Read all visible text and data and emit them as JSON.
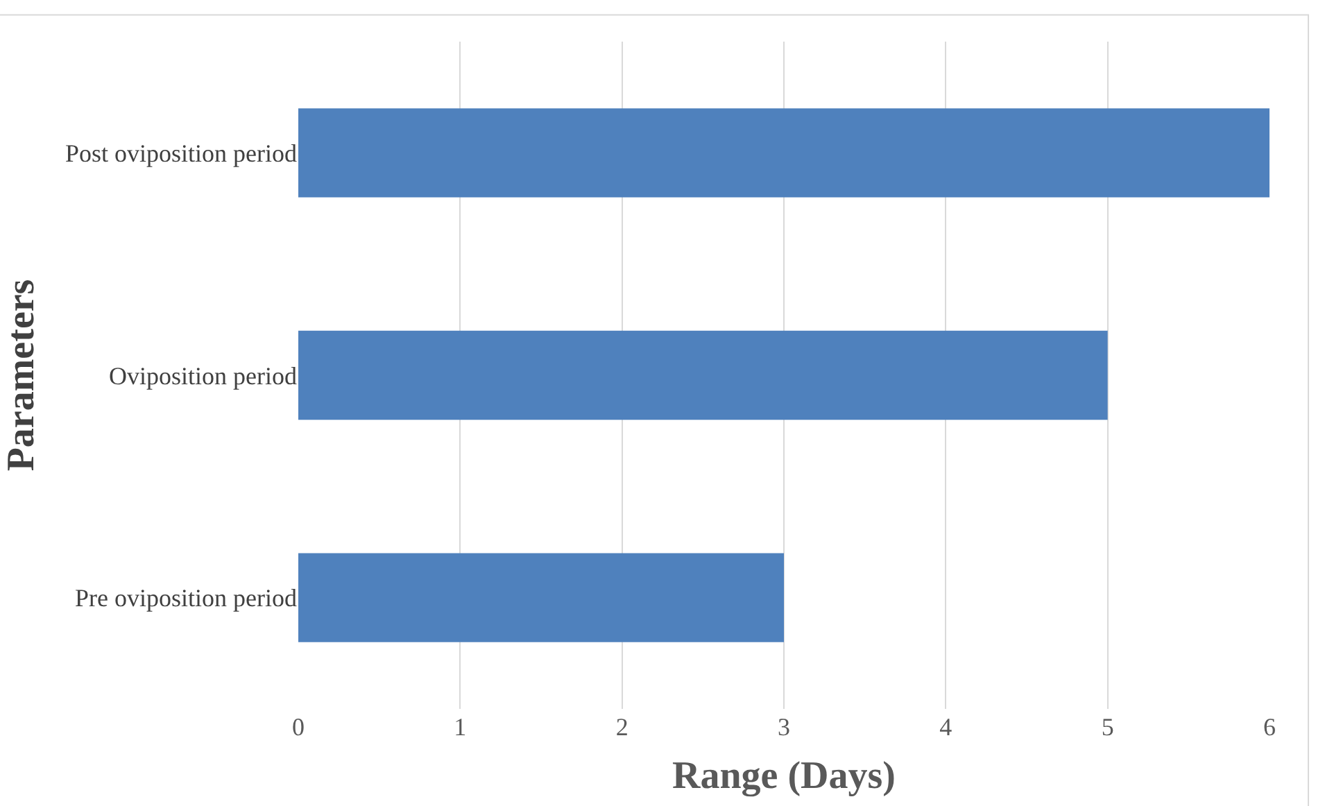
{
  "chart_data": {
    "type": "bar",
    "orientation": "horizontal",
    "xlabel": "Range (Days)",
    "ylabel": "Parameters",
    "categories": [
      "Post oviposition period",
      "Oviposition period",
      "Pre oviposition period"
    ],
    "values": [
      6,
      5,
      3
    ],
    "color": "#4f81bd",
    "xlim": [
      0,
      6
    ],
    "xticks": [
      0,
      1,
      2,
      3,
      4,
      5,
      6
    ],
    "grid": "x"
  }
}
